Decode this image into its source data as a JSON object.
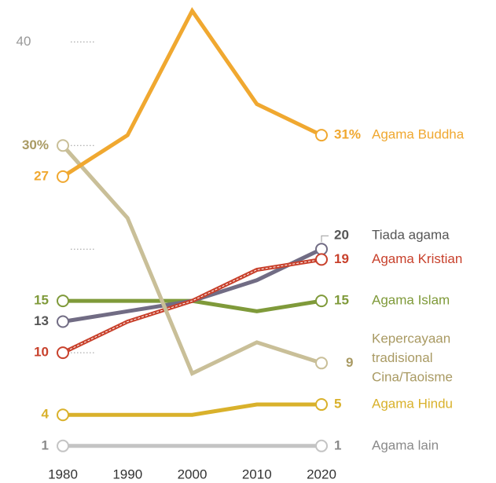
{
  "chart_data": {
    "type": "line",
    "x": [
      1980,
      1990,
      2000,
      2010,
      2020
    ],
    "xticks": [
      1980,
      1990,
      2000,
      2010,
      2020
    ],
    "xlim": [
      1980,
      2020
    ],
    "ylim": [
      0,
      45
    ],
    "yticks": [
      {
        "value": 10,
        "label": null
      },
      {
        "value": 20,
        "label": null
      },
      {
        "value": 30,
        "label": null
      },
      40
    ],
    "grid": "dotted",
    "series": [
      {
        "name": "Agama lain",
        "color": "#c4c4c4",
        "label_color": "#8a8a8a",
        "values": [
          1,
          1,
          1,
          1,
          1
        ]
      },
      {
        "name": "Agama Hindu",
        "color": "#d9b12b",
        "values": [
          4,
          4,
          4,
          5,
          5
        ]
      },
      {
        "name": "Agama Islam",
        "color": "#7f9a3a",
        "values": [
          15,
          15,
          15,
          14,
          15
        ]
      },
      {
        "name": "Tiada agama",
        "color": "#716c84",
        "label_color": "#555555",
        "values": [
          13,
          14,
          15,
          17,
          20
        ]
      },
      {
        "name": "Agama Kristian",
        "color": "#c8412c",
        "dashed": true,
        "values": [
          10,
          13,
          15,
          18,
          19
        ]
      },
      {
        "name": "Kepercayaan tradisional Cina/Taoisme",
        "color": "#c9bf98",
        "label_color": "#a99a63",
        "values": [
          30,
          23,
          8,
          11,
          9
        ],
        "value_labels": [
          "30%",
          null,
          null,
          null,
          null
        ]
      },
      {
        "name": "Agama Buddha",
        "color": "#f0a830",
        "values": [
          27,
          31,
          43,
          34,
          31
        ],
        "value_labels": [
          null,
          null,
          null,
          null,
          "31%"
        ]
      }
    ]
  }
}
